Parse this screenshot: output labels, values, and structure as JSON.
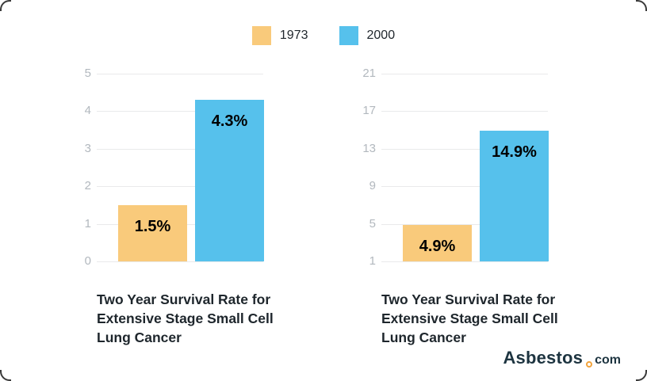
{
  "page": {
    "background": "#ffffff"
  },
  "legend": {
    "items": [
      {
        "label": "1973",
        "color": "#F9CA7B"
      },
      {
        "label": "2000",
        "color": "#56C1EC"
      }
    ]
  },
  "chart_data": [
    {
      "type": "bar",
      "title": "Two Year Survival Rate for Extensive Stage Small Cell Lung Cancer",
      "title_lines": [
        "Two Year Survival Rate for",
        "Extensive Stage Small Cell",
        "Lung Cancer"
      ],
      "categories": [
        "1973",
        "2000"
      ],
      "values": [
        1.5,
        4.3
      ],
      "bar_labels": [
        "1.5%",
        "4.3%"
      ],
      "colors": [
        "#F9CA7B",
        "#56C1EC"
      ],
      "yticks": [
        5,
        4,
        3,
        2,
        1,
        0
      ],
      "ylim": [
        0,
        5
      ],
      "xlabel": "",
      "ylabel": "",
      "grid": true,
      "legend_position": "top-center"
    },
    {
      "type": "bar",
      "title": "Two Year Survival Rate for Extensive Stage Small Cell Lung Cancer",
      "title_lines": [
        "Two Year Survival Rate for",
        "Extensive Stage Small Cell",
        "Lung Cancer"
      ],
      "categories": [
        "1973",
        "2000"
      ],
      "values": [
        4.9,
        14.9
      ],
      "bar_labels": [
        "4.9%",
        "14.9%"
      ],
      "colors": [
        "#F9CA7B",
        "#56C1EC"
      ],
      "yticks": [
        21,
        17,
        13,
        9,
        5,
        1
      ],
      "ylim": [
        1,
        21
      ],
      "xlabel": "",
      "ylabel": "",
      "grid": true,
      "legend_position": "top-center"
    }
  ],
  "brand": {
    "name": "Asbestos",
    "tld": "com",
    "text_color": "#1D3440",
    "dot_color": "#F2A33C"
  },
  "colors": {
    "tick_label": "#B2B8BE",
    "gridline": "#E9EAEB",
    "title_text": "#1E262C",
    "bar_value_text": "#000000"
  }
}
